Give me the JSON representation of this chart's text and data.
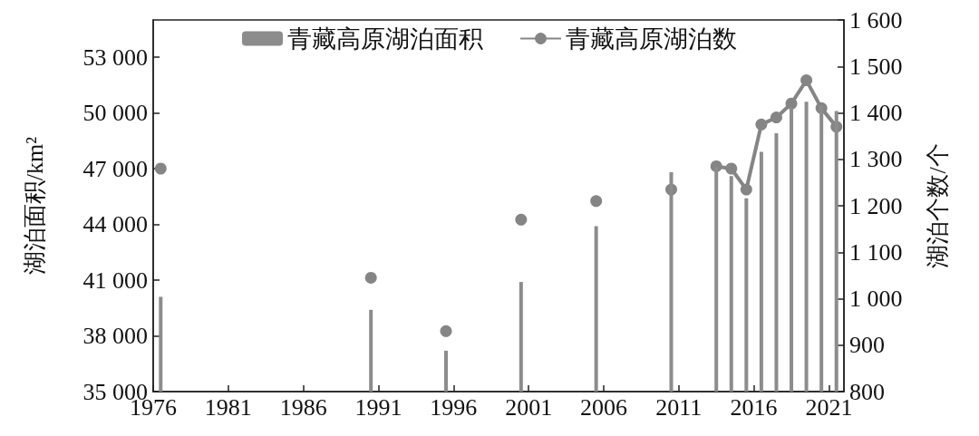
{
  "chart_data": {
    "type": "bar",
    "ylabel": "湖泊面积/km²",
    "y2label": "湖泊个数/个",
    "x": [
      1976.5,
      1990.5,
      1995.5,
      2000.5,
      2005.5,
      2010.5,
      2013.5,
      2014.5,
      2015.5,
      2016.5,
      2017.5,
      2018.5,
      2019.5,
      2020.5,
      2021.5
    ],
    "xlim": [
      1976,
      2022
    ],
    "xticks": [
      1976,
      1981,
      1986,
      1991,
      1996,
      2001,
      2006,
      2011,
      2016,
      2021
    ],
    "ylim": [
      35000,
      55000
    ],
    "yticks": [
      {
        "value": 35000,
        "label": "35 000"
      },
      {
        "value": 38000,
        "label": "38 000"
      },
      {
        "value": 41000,
        "label": "41 000"
      },
      {
        "value": 44000,
        "label": "44 000"
      },
      {
        "value": 47000,
        "label": "47 000"
      },
      {
        "value": 50000,
        "label": "50 000"
      },
      {
        "value": 53000,
        "label": "53 000"
      }
    ],
    "y2lim": [
      800,
      1600
    ],
    "y2ticks": [
      800,
      900,
      {
        "value": 1000,
        "label": "1 000"
      },
      {
        "value": 1100,
        "label": "1 100"
      },
      {
        "value": 1200,
        "label": "1 200"
      },
      {
        "value": 1300,
        "label": "1 300"
      },
      {
        "value": 1400,
        "label": "1 400"
      },
      {
        "value": 1500,
        "label": "1 500"
      },
      {
        "value": 1600,
        "label": "1 600"
      }
    ],
    "series": [
      {
        "name": "青藏高原湖泊面积",
        "color": "#8c8c8c",
        "values": [
          40100,
          39400,
          37200,
          40900,
          43900,
          46800,
          47100,
          46600,
          45400,
          47900,
          48900,
          50300,
          50600,
          50400,
          50100
        ]
      },
      {
        "name": "青藏高原湖泊数",
        "type": "line",
        "axis": "y2",
        "color": "#858585",
        "x": [
          2013.5,
          2014.5,
          2015.5,
          2016.5,
          2017.5,
          2018.5,
          2019.5,
          2020.5,
          2021.5
        ],
        "values": [
          1285,
          1280,
          1235,
          1375,
          1390,
          1420,
          1470,
          1410,
          1370
        ]
      },
      {
        "type": "scatter",
        "axis": "y2",
        "color": "#858585",
        "x": [
          1976.5,
          1990.5,
          1995.5,
          2000.5,
          2005.5,
          2010.5
        ],
        "values": [
          1280,
          1045,
          930,
          1170,
          1210,
          1235
        ]
      }
    ],
    "grid": false,
    "legend": "top",
    "marker": "circle"
  }
}
